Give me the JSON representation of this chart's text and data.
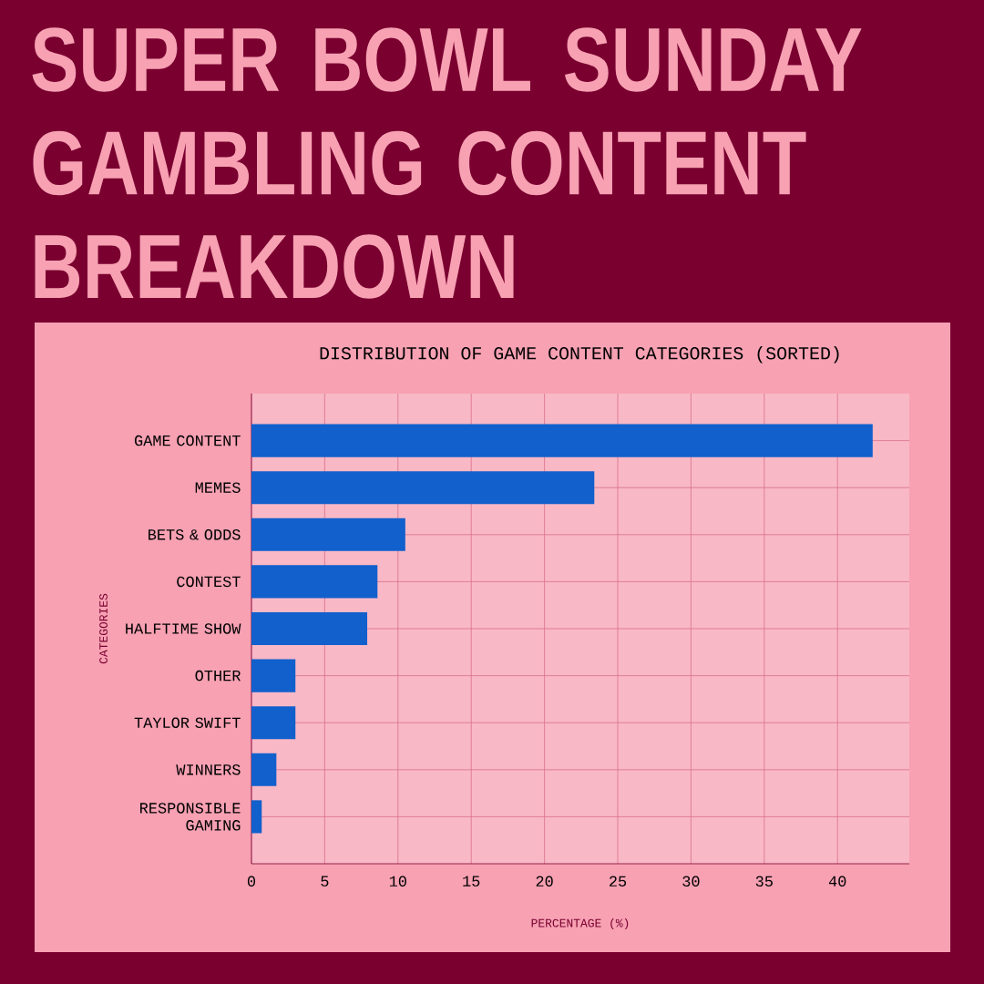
{
  "chart_data": {
    "type": "bar",
    "orientation": "horizontal",
    "title": "SUPER BOWL SUNDAY GAMBLING CONTENT BREAKDOWN",
    "subtitle": "DISTRIBUTION OF GAME CONTENT CATEGORIES (SORTED)",
    "xlabel": "PERCENTAGE (%)",
    "ylabel": "CATEGORIES",
    "categories": [
      "GAME CONTENT",
      "MEMES",
      "BETS & ODDS",
      "CONTEST",
      "HALFTIME SHOW",
      "OTHER",
      "TAYLOR SWIFT",
      "WINNERS",
      "RESPONSIBLE GAMING"
    ],
    "values": [
      42.4,
      23.4,
      10.5,
      8.6,
      7.9,
      3.0,
      3.0,
      1.7,
      0.7
    ],
    "color": "#1160cc",
    "xlim": [
      0,
      44.9
    ],
    "xticks": [
      0,
      5,
      10,
      15,
      20,
      25,
      30,
      35,
      40
    ],
    "grid": true
  }
}
